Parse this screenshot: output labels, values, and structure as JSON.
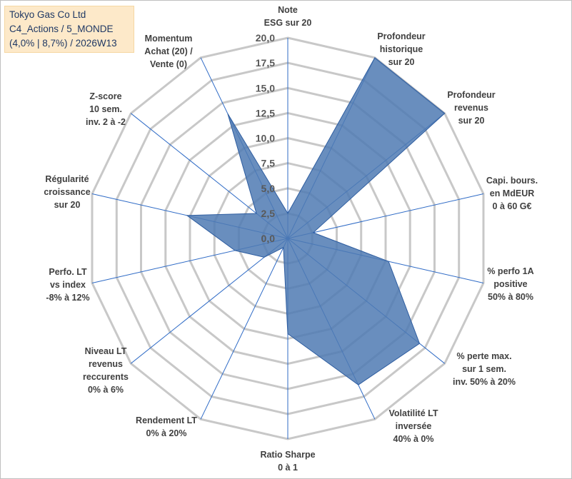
{
  "header": {
    "line1": "Tokyo Gas Co Ltd",
    "line2": "C4_Actions / 5_MONDE",
    "line3": "(4,0% | 8,7%) / 2026W13"
  },
  "chart_data": {
    "type": "radar",
    "title": "Tokyo Gas Co Ltd",
    "rmin": 0,
    "rmax": 20,
    "ticks": [
      "0,0",
      "2,5",
      "5,0",
      "7,5",
      "10,0",
      "12,5",
      "15,0",
      "17,5",
      "20,0"
    ],
    "tick_values": [
      0,
      2.5,
      5,
      7.5,
      10,
      12.5,
      15,
      17.5,
      20
    ],
    "axes": [
      {
        "lines": [
          "Note",
          "ESG sur 20"
        ],
        "value": 2.5
      },
      {
        "lines": [
          "Profondeur",
          "historique",
          "sur 20"
        ],
        "value": 20
      },
      {
        "lines": [
          "Profondeur",
          "revenus",
          "sur 20"
        ],
        "value": 20
      },
      {
        "lines": [
          "Capi. bours.",
          "en MdEUR",
          "0 à 60 G€"
        ],
        "value": 2.6
      },
      {
        "lines": [
          "% perfo 1A",
          "positive",
          "50% à 80%"
        ],
        "value": 10.3
      },
      {
        "lines": [
          "% perte max.",
          "sur 1 sem.",
          "inv. 50% à 20%"
        ],
        "value": 16.8
      },
      {
        "lines": [
          "Volatilité LT",
          "inversée",
          "40% à 0%"
        ],
        "value": 16.2
      },
      {
        "lines": [
          "Ratio Sharpe",
          "0 à 1"
        ],
        "value": 9.5
      },
      {
        "lines": [
          "Rendement LT",
          "0% à 20%"
        ],
        "value": 1.0
      },
      {
        "lines": [
          "Niveau LT",
          "revenus",
          "reccurents",
          "0% à 6%"
        ],
        "value": 3.0
      },
      {
        "lines": [
          "Perfo. LT",
          "vs index",
          "-8% à 12%"
        ],
        "value": 5.4
      },
      {
        "lines": [
          "Régularité",
          "croissance",
          "sur 20"
        ],
        "value": 10.3
      },
      {
        "lines": [
          "Z-score",
          "10 sem.",
          "inv. 2 à -2"
        ],
        "value": 4.0
      },
      {
        "lines": [
          "Momentum",
          "Achat (20) /",
          "Vente (0)"
        ],
        "value": 13.8
      }
    ],
    "colors": {
      "fill": "#4f7ab3",
      "stroke": "#2e5da0",
      "grid": "#c8c8c8",
      "spoke": "#2f6bc6"
    }
  }
}
